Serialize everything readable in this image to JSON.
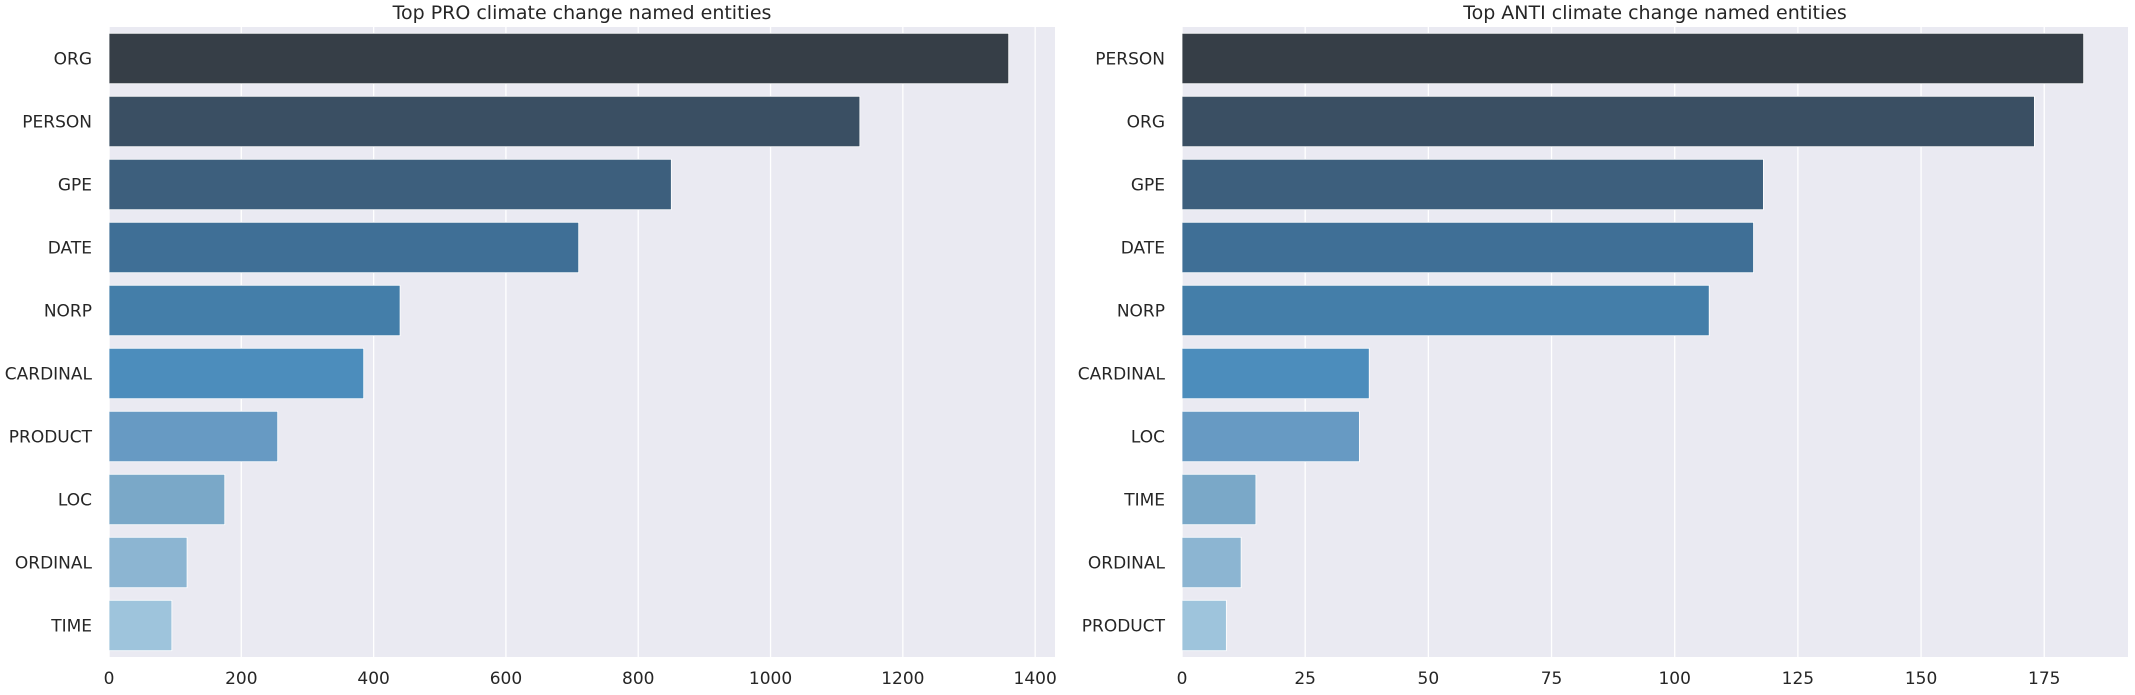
{
  "chart_data": [
    {
      "type": "bar",
      "orientation": "horizontal",
      "title": "Top PRO climate change named entities",
      "categories": [
        "ORG",
        "PERSON",
        "GPE",
        "DATE",
        "NORP",
        "CARDINAL",
        "PRODUCT",
        "LOC",
        "ORDINAL",
        "TIME"
      ],
      "values": [
        1360,
        1135,
        850,
        710,
        440,
        385,
        255,
        175,
        118,
        95
      ],
      "xlim": [
        0,
        1430
      ],
      "xticks": [
        0,
        200,
        400,
        600,
        800,
        1000,
        1200,
        1400
      ],
      "xlabel": "",
      "ylabel": "",
      "grid": true,
      "colors": [
        "#363e47",
        "#3a4f63",
        "#3d5f7d",
        "#3f6f96",
        "#447ea9",
        "#4c8dbc",
        "#679ac3",
        "#7aa8c8",
        "#8cb5d2",
        "#9ec4dc"
      ]
    },
    {
      "type": "bar",
      "orientation": "horizontal",
      "title": "Top ANTI climate change named entities",
      "categories": [
        "PERSON",
        "ORG",
        "GPE",
        "DATE",
        "NORP",
        "CARDINAL",
        "LOC",
        "TIME",
        "ORDINAL",
        "PRODUCT"
      ],
      "values": [
        183,
        173,
        118,
        116,
        107,
        38,
        36,
        15,
        12,
        9
      ],
      "xlim": [
        0,
        192
      ],
      "xticks": [
        0,
        25,
        50,
        75,
        100,
        125,
        150,
        175
      ],
      "xlabel": "",
      "ylabel": "",
      "grid": true,
      "colors": [
        "#363e47",
        "#3a4f63",
        "#3d5f7d",
        "#3f6f96",
        "#447ea9",
        "#4c8dbc",
        "#679ac3",
        "#7aa8c8",
        "#8cb5d2",
        "#9ec4dc"
      ]
    }
  ],
  "style": {
    "background": "#eaeaf2",
    "grid_color": "#ffffff",
    "text_color": "#262626"
  }
}
